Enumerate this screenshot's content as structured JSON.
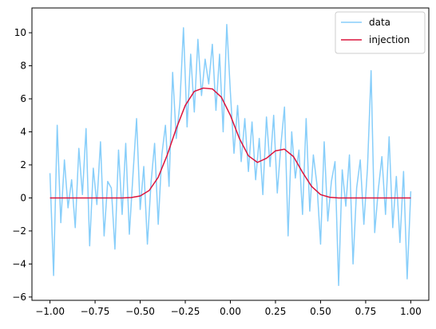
{
  "chart_data": {
    "type": "line",
    "title": "",
    "xlabel": "",
    "ylabel": "",
    "xlim": [
      -1.1,
      1.1
    ],
    "ylim": [
      -6.2,
      11.5
    ],
    "xticks": [
      -1.0,
      -0.75,
      -0.5,
      -0.25,
      0.0,
      0.25,
      0.5,
      0.75,
      1.0
    ],
    "xtick_labels": [
      "−1.00",
      "−0.75",
      "−0.50",
      "−0.25",
      "0.00",
      "0.25",
      "0.50",
      "0.75",
      "1.00"
    ],
    "yticks": [
      -6,
      -4,
      -2,
      0,
      2,
      4,
      6,
      8,
      10
    ],
    "ytick_labels": [
      "−6",
      "−4",
      "−2",
      "0",
      "2",
      "4",
      "6",
      "8",
      "10"
    ],
    "grid": false,
    "legend_position": "top-right",
    "series": [
      {
        "name": "data",
        "color": "#87cefa",
        "x": [
          -1.0,
          -0.98,
          -0.96,
          -0.94,
          -0.92,
          -0.9,
          -0.88,
          -0.86,
          -0.84,
          -0.82,
          -0.8,
          -0.78,
          -0.76,
          -0.74,
          -0.72,
          -0.7,
          -0.68,
          -0.66,
          -0.64,
          -0.62,
          -0.6,
          -0.58,
          -0.56,
          -0.54,
          -0.52,
          -0.5,
          -0.48,
          -0.46,
          -0.44,
          -0.42,
          -0.4,
          -0.38,
          -0.36,
          -0.34,
          -0.32,
          -0.3,
          -0.28,
          -0.26,
          -0.24,
          -0.22,
          -0.2,
          -0.18,
          -0.16,
          -0.14,
          -0.12,
          -0.1,
          -0.08,
          -0.06,
          -0.04,
          -0.02,
          0.0,
          0.02,
          0.04,
          0.06,
          0.08,
          0.1,
          0.12,
          0.14,
          0.16,
          0.18,
          0.2,
          0.22,
          0.24,
          0.26,
          0.28,
          0.3,
          0.32,
          0.34,
          0.36,
          0.38,
          0.4,
          0.42,
          0.44,
          0.46,
          0.48,
          0.5,
          0.52,
          0.54,
          0.56,
          0.58,
          0.6,
          0.62,
          0.64,
          0.66,
          0.68,
          0.7,
          0.72,
          0.74,
          0.76,
          0.78,
          0.8,
          0.82,
          0.84,
          0.86,
          0.88,
          0.9,
          0.92,
          0.94,
          0.96,
          0.98,
          1.0
        ],
        "y": [
          1.5,
          -4.7,
          4.4,
          -1.5,
          2.3,
          -0.6,
          1.1,
          -1.8,
          3.0,
          0.2,
          4.2,
          -2.9,
          1.8,
          -0.4,
          3.4,
          -2.3,
          1.0,
          0.6,
          -3.1,
          2.9,
          -1.0,
          3.3,
          -2.2,
          1.4,
          4.8,
          -0.7,
          1.9,
          -2.8,
          0.9,
          3.3,
          -1.6,
          2.6,
          4.4,
          0.7,
          7.6,
          3.6,
          5.7,
          10.3,
          4.3,
          8.7,
          5.2,
          9.6,
          6.2,
          8.4,
          6.9,
          9.3,
          5.3,
          8.7,
          4.0,
          10.5,
          6.4,
          2.7,
          5.6,
          2.2,
          4.8,
          1.6,
          4.6,
          1.1,
          3.6,
          0.2,
          4.9,
          1.9,
          5.0,
          0.3,
          3.2,
          5.5,
          -2.3,
          4.0,
          1.2,
          2.9,
          -1.0,
          4.8,
          -0.8,
          2.6,
          0.8,
          -2.8,
          3.4,
          -1.4,
          1.0,
          2.2,
          -5.3,
          1.7,
          -0.5,
          2.6,
          -4.0,
          0.6,
          2.3,
          -1.6,
          1.8,
          7.7,
          -2.1,
          0.5,
          2.5,
          -1.0,
          3.7,
          -1.8,
          1.3,
          -2.7,
          1.6,
          -4.9,
          0.4
        ]
      },
      {
        "name": "injection",
        "color": "#dc143c",
        "x": [
          -1.0,
          -0.95,
          -0.9,
          -0.85,
          -0.8,
          -0.75,
          -0.7,
          -0.65,
          -0.6,
          -0.55,
          -0.5,
          -0.45,
          -0.4,
          -0.35,
          -0.3,
          -0.25,
          -0.2,
          -0.15,
          -0.1,
          -0.05,
          0.0,
          0.05,
          0.1,
          0.15,
          0.2,
          0.25,
          0.3,
          0.35,
          0.4,
          0.45,
          0.5,
          0.55,
          0.6,
          0.65,
          0.7,
          0.75,
          0.8,
          0.85,
          0.9,
          0.95,
          1.0
        ],
        "y": [
          0,
          0,
          0,
          0,
          0,
          0,
          0,
          0,
          0,
          0.02,
          0.12,
          0.45,
          1.25,
          2.6,
          4.2,
          5.6,
          6.45,
          6.65,
          6.6,
          6.1,
          5.0,
          3.6,
          2.55,
          2.15,
          2.4,
          2.85,
          2.95,
          2.5,
          1.55,
          0.7,
          0.2,
          0.04,
          0,
          0,
          0,
          0,
          0,
          0,
          0,
          0,
          0
        ]
      }
    ]
  }
}
